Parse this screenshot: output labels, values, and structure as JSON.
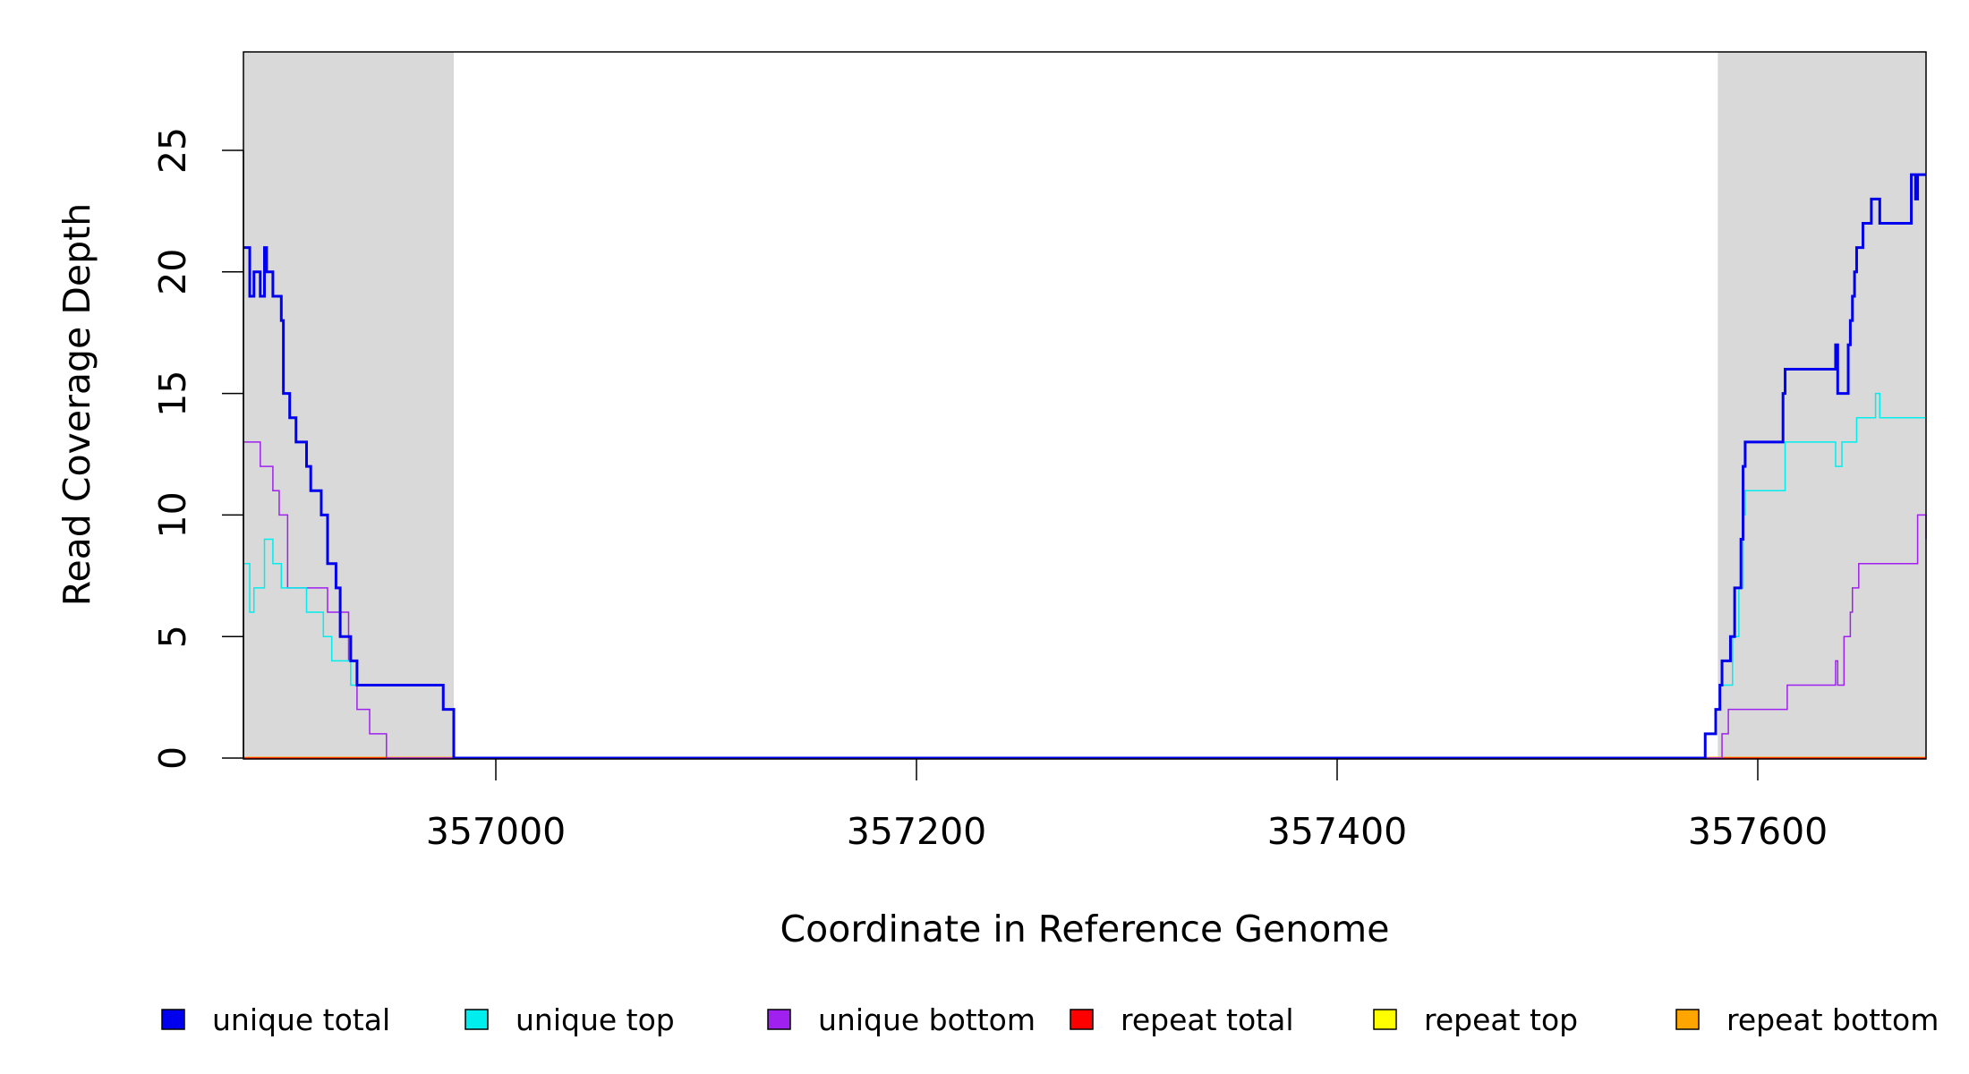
{
  "chart_data": {
    "type": "line",
    "title": "",
    "xlabel": "Coordinate in Reference Genome",
    "ylabel": "Read Coverage Depth",
    "xlim": [
      356880,
      357680
    ],
    "ylim": [
      0,
      29
    ],
    "x_ticks": [
      357000,
      357200,
      357400,
      357600
    ],
    "x_tick_labels": [
      "357000",
      "357200",
      "357400",
      "357600"
    ],
    "y_ticks": [
      0,
      5,
      10,
      15,
      20,
      25
    ],
    "y_tick_labels": [
      "0",
      "5",
      "10",
      "15",
      "20",
      "25"
    ],
    "grid": false,
    "legend_position": "bottom",
    "shaded_regions": [
      {
        "x_start": 356880,
        "x_end": 356980,
        "color": "#d9d9d9"
      },
      {
        "x_start": 357581,
        "x_end": 357680,
        "color": "#d9d9d9"
      }
    ],
    "series": [
      {
        "name": "unique total",
        "color": "#0000ee",
        "x": [
          356880,
          356883,
          356885,
          356888,
          356890,
          356891,
          356894,
          356898,
          356899,
          356902,
          356903,
          356905,
          356910,
          356912,
          356917,
          356920,
          356922,
          356924,
          356926,
          356931,
          356934,
          356937,
          356939,
          356943,
          356948,
          356950,
          356975,
          356976,
          356980,
          356981,
          357575,
          357580,
          357582,
          357583,
          357584,
          357587,
          357588,
          357589,
          357592,
          357593,
          357594,
          357596,
          357598,
          357599,
          357612,
          357613,
          357614,
          357637,
          357638,
          357639,
          357643,
          357644,
          357645,
          357646,
          357647,
          357648,
          357650,
          357654,
          357656,
          357658,
          357662,
          357673,
          357675,
          357676,
          357680
        ],
        "y": [
          21,
          19,
          20,
          19,
          21,
          20,
          19,
          18,
          15,
          14,
          14,
          13,
          12,
          11,
          10,
          8,
          8,
          7,
          5,
          4,
          3,
          3,
          3,
          3,
          3,
          3,
          2,
          2,
          0,
          0,
          1,
          2,
          3,
          4,
          4,
          5,
          5,
          7,
          9,
          12,
          13,
          13,
          13,
          13,
          15,
          16,
          16,
          17,
          15,
          15,
          17,
          18,
          19,
          20,
          21,
          21,
          22,
          23,
          23,
          22,
          22,
          24,
          23,
          24,
          24
        ]
      },
      {
        "name": "unique top",
        "color": "#00eeee",
        "x": [
          356880,
          356883,
          356885,
          356890,
          356894,
          356898,
          356900,
          356910,
          356918,
          356922,
          356926,
          356931,
          356934,
          356943,
          356948,
          356975,
          356976,
          356980,
          356981,
          357575,
          357580,
          357582,
          357584,
          357588,
          357591,
          357593,
          357594,
          357596,
          357612,
          357613,
          357614,
          357637,
          357640,
          357644,
          357647,
          357656,
          357658,
          357662,
          357675,
          357680
        ],
        "y": [
          8,
          6,
          7,
          9,
          8,
          7,
          7,
          6,
          5,
          4,
          4,
          3,
          3,
          3,
          3,
          2,
          2,
          0,
          0,
          1,
          2,
          3,
          3,
          5,
          7,
          10,
          11,
          11,
          11,
          13,
          13,
          12,
          13,
          13,
          14,
          15,
          14,
          14,
          14,
          14
        ],
        "width": 1.5
      },
      {
        "name": "unique bottom",
        "color": "#a020f0",
        "x": [
          356880,
          356888,
          356894,
          356897,
          356901,
          356920,
          356922,
          356930,
          356934,
          356940,
          356948,
          356950,
          356976,
          356980,
          356981,
          357580,
          357583,
          357586,
          357590,
          357595,
          357600,
          357610,
          357614,
          357620,
          357630,
          357637,
          357638,
          357640,
          357641,
          357644,
          357645,
          357646,
          357648,
          357650,
          357668,
          357670,
          357676,
          357680
        ],
        "y": [
          13,
          12,
          11,
          10,
          7,
          6,
          6,
          4,
          2,
          1,
          0,
          0,
          0,
          0,
          0,
          0,
          1,
          2,
          2,
          2,
          2,
          2,
          3,
          3,
          3,
          4,
          3,
          3,
          5,
          6,
          7,
          7,
          8,
          8,
          8,
          8,
          10,
          9
        ],
        "width": 1.5
      },
      {
        "name": "repeat total",
        "color": "#ff0000",
        "x": [
          356880,
          357680
        ],
        "y": [
          0,
          0
        ],
        "width": 1.5
      },
      {
        "name": "repeat top",
        "color": "#ffff00",
        "x": [
          356880,
          357680
        ],
        "y": [
          0,
          0
        ],
        "width": 1.5
      },
      {
        "name": "repeat bottom",
        "color": "#ffa500",
        "x": [
          356880,
          357680
        ],
        "y": [
          0,
          0
        ],
        "width": 3
      }
    ]
  }
}
